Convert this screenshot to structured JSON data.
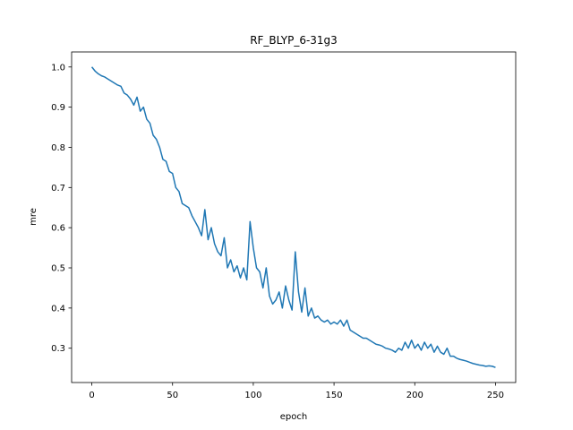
{
  "chart_data": {
    "type": "line",
    "title": "RF_BLYP_6-31g3",
    "x_label": "epoch",
    "y_label": "mre",
    "color": "#1f77b4",
    "grid": false,
    "xlim": [
      -12.5,
      262.5
    ],
    "ylim": [
      0.2146,
      1.0374
    ],
    "xticks": [
      0,
      50,
      100,
      150,
      200,
      250
    ],
    "yticks": [
      0.3,
      0.4,
      0.5,
      0.6,
      0.7,
      0.8,
      0.9,
      {
        "value": 1,
        "label": "1.0"
      }
    ],
    "x": [
      0,
      2,
      4,
      6,
      8,
      10,
      12,
      14,
      16,
      18,
      20,
      22,
      24,
      26,
      28,
      30,
      32,
      34,
      36,
      38,
      40,
      42,
      44,
      46,
      48,
      50,
      52,
      54,
      56,
      58,
      60,
      62,
      64,
      66,
      68,
      70,
      72,
      74,
      76,
      78,
      80,
      82,
      84,
      86,
      88,
      90,
      92,
      94,
      96,
      98,
      100,
      102,
      104,
      106,
      108,
      110,
      112,
      114,
      116,
      118,
      120,
      122,
      124,
      126,
      128,
      130,
      132,
      134,
      136,
      138,
      140,
      142,
      144,
      146,
      148,
      150,
      152,
      154,
      156,
      158,
      160,
      162,
      164,
      166,
      168,
      170,
      172,
      174,
      176,
      178,
      180,
      182,
      184,
      186,
      188,
      190,
      192,
      194,
      196,
      198,
      200,
      202,
      204,
      206,
      208,
      210,
      212,
      214,
      216,
      218,
      220,
      222,
      224,
      226,
      228,
      230,
      232,
      234,
      236,
      238,
      240,
      242,
      244,
      246,
      248,
      250
    ],
    "values": [
      1.0,
      0.99,
      0.983,
      0.978,
      0.975,
      0.97,
      0.965,
      0.96,
      0.955,
      0.952,
      0.935,
      0.93,
      0.92,
      0.905,
      0.925,
      0.89,
      0.9,
      0.87,
      0.86,
      0.83,
      0.82,
      0.8,
      0.77,
      0.765,
      0.74,
      0.735,
      0.7,
      0.69,
      0.66,
      0.655,
      0.65,
      0.63,
      0.615,
      0.6,
      0.58,
      0.645,
      0.57,
      0.6,
      0.56,
      0.54,
      0.53,
      0.575,
      0.5,
      0.52,
      0.49,
      0.505,
      0.475,
      0.5,
      0.47,
      0.615,
      0.55,
      0.5,
      0.49,
      0.45,
      0.5,
      0.43,
      0.41,
      0.42,
      0.44,
      0.4,
      0.455,
      0.42,
      0.395,
      0.54,
      0.44,
      0.39,
      0.45,
      0.38,
      0.4,
      0.375,
      0.38,
      0.37,
      0.365,
      0.37,
      0.36,
      0.365,
      0.36,
      0.37,
      0.355,
      0.37,
      0.345,
      0.34,
      0.335,
      0.33,
      0.325,
      0.325,
      0.32,
      0.315,
      0.31,
      0.308,
      0.305,
      0.3,
      0.298,
      0.295,
      0.29,
      0.3,
      0.295,
      0.315,
      0.3,
      0.32,
      0.3,
      0.31,
      0.295,
      0.315,
      0.3,
      0.31,
      0.29,
      0.305,
      0.29,
      0.285,
      0.3,
      0.28,
      0.28,
      0.275,
      0.272,
      0.27,
      0.268,
      0.265,
      0.262,
      0.26,
      0.258,
      0.257,
      0.255,
      0.256,
      0.255,
      0.252
    ]
  }
}
